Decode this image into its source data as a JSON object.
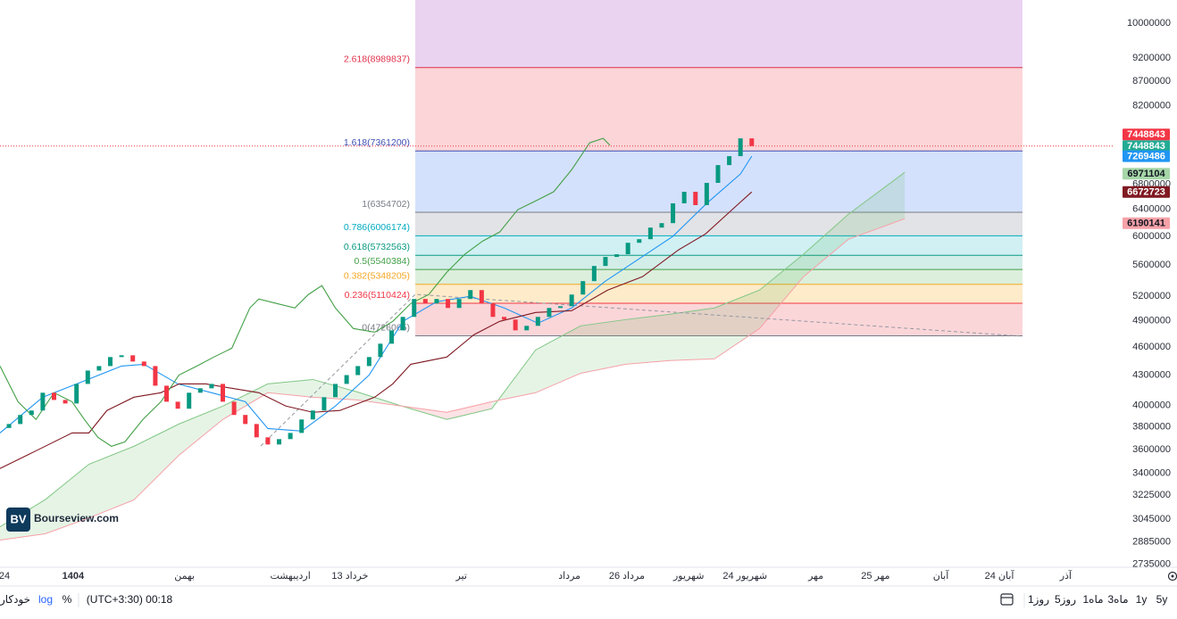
{
  "chart_data": {
    "type": "candlestick",
    "log_scale": true,
    "ylim": [
      2720000,
      10570000
    ],
    "yticks": [
      10000000,
      9200000,
      8700000,
      8200000,
      6800000,
      6400000,
      6000000,
      5600000,
      5200000,
      4900000,
      4600000,
      4300000,
      4000000,
      3800000,
      3600000,
      3400000,
      3225000,
      3045000,
      2885000,
      2735000
    ],
    "xlim": [
      -0.8,
      97.6
    ],
    "xticks": [
      {
        "value": -0.4,
        "label": "24"
      },
      {
        "value": 5.7,
        "label": "1404"
      },
      {
        "value": 15.6,
        "label": "بهمن"
      },
      {
        "value": 25,
        "label": "اردیبهشت"
      },
      {
        "value": 30.3,
        "label": "13 خرداد"
      },
      {
        "value": 40.2,
        "label": "تیر"
      },
      {
        "value": 49.8,
        "label": "مرداد"
      },
      {
        "value": 54.9,
        "label": "26 مرداد"
      },
      {
        "value": 60.4,
        "label": "شهریور"
      },
      {
        "value": 65.4,
        "label": "24 شهریور"
      },
      {
        "value": 71.7,
        "label": "مهر"
      },
      {
        "value": 77,
        "label": "25 مهر"
      },
      {
        "value": 82.8,
        "label": "آبان"
      },
      {
        "value": 88,
        "label": "24 آبان"
      },
      {
        "value": 93.9,
        "label": "آذر"
      }
    ],
    "candles": {
      "up_color": "#089981",
      "down_color": "#f23645",
      "open": [
        3790000,
        3826000,
        3910000,
        3952000,
        4124000,
        4053000,
        4019000,
        4212000,
        4349000,
        4396000,
        4492000,
        4511000,
        4444000,
        4396000,
        4194000,
        4036000,
        3969000,
        4124000,
        4168000,
        4212000,
        4036000,
        3910000,
        3826000,
        3706000,
        3643000,
        3690000,
        3745000,
        3868000,
        3952000,
        4080000,
        4212000,
        4302000,
        4396000,
        4492000,
        4638000,
        4789000,
        4946000,
        5163000,
        5107000,
        5163000,
        5053000,
        5163000,
        5274000,
        5107000,
        4946000,
        4914000,
        4789000,
        4841000,
        4946000,
        5053000,
        5074000,
        5218000,
        5389000,
        5588000,
        5710000,
        5747000,
        5907000,
        5958000,
        6126000,
        6192000,
        6493000,
        6675000,
        6465000,
        6819000,
        7116000,
        7270000,
        7587000
      ],
      "close": [
        3826000,
        3910000,
        3952000,
        4124000,
        4053000,
        4019000,
        4212000,
        4349000,
        4396000,
        4492000,
        4511000,
        4444000,
        4396000,
        4194000,
        4036000,
        3969000,
        4124000,
        4168000,
        4212000,
        4036000,
        3910000,
        3826000,
        3706000,
        3643000,
        3690000,
        3745000,
        3868000,
        3952000,
        4080000,
        4212000,
        4302000,
        4396000,
        4492000,
        4638000,
        4789000,
        4946000,
        5163000,
        5107000,
        5163000,
        5053000,
        5163000,
        5274000,
        5107000,
        4946000,
        4914000,
        4789000,
        4841000,
        4946000,
        5053000,
        5074000,
        5218000,
        5389000,
        5588000,
        5710000,
        5747000,
        5907000,
        5958000,
        6126000,
        6192000,
        6493000,
        6675000,
        6465000,
        6819000,
        7116000,
        7270000,
        7587000,
        7448843
      ]
    },
    "lines": [
      {
        "color": "#2196f3",
        "x": [
          -0.8,
          3,
          7,
          10,
          12,
          15,
          18,
          21,
          23,
          26,
          29,
          32,
          35,
          38,
          41,
          44,
          47,
          50,
          53,
          56,
          59,
          62,
          65,
          66
        ],
        "values": [
          3745000,
          4080000,
          4257000,
          4396000,
          4415000,
          4212000,
          4124000,
          4036000,
          3785000,
          3762000,
          3994000,
          4302000,
          4893000,
          5129000,
          5196000,
          5053000,
          4872000,
          5053000,
          5389000,
          5686000,
          6000000,
          6493000,
          6966000,
          7269486
        ]
      },
      {
        "color": "#801922",
        "x": [
          -0.8,
          2.4,
          5.6,
          7.1,
          8.7,
          11.1,
          13.5,
          15.1,
          17.5,
          19.8,
          22.2,
          24.6,
          27,
          29.4,
          32.5,
          34.1,
          35.7,
          38.9,
          41.3,
          43.6,
          46.8,
          50,
          53.2,
          56.3,
          59.5,
          61.9,
          64.7,
          66
        ],
        "values": [
          3439000,
          3588000,
          3745000,
          3745000,
          3952000,
          4080000,
          4124000,
          4212000,
          4212000,
          4168000,
          4124000,
          3994000,
          3935000,
          3952000,
          4080000,
          4212000,
          4415000,
          4492000,
          4738000,
          4893000,
          4999000,
          5020000,
          5274000,
          5447000,
          5808000,
          6035000,
          6465000,
          6672723
        ]
      },
      {
        "color": "#43a047",
        "x": [
          -0.8,
          0.8,
          2.4,
          4,
          5.6,
          6.7,
          7.9,
          9.1,
          10.3,
          11.9,
          13.5,
          15.1,
          16.7,
          18.2,
          19.8,
          21.4,
          22.2,
          23.8,
          25.4,
          26.6,
          27.8,
          29,
          30.6,
          32.5,
          34.1,
          35.7,
          37.3,
          38.9,
          40.5,
          42.1,
          43.6,
          45.2,
          46.8,
          48.4,
          50,
          51.6,
          52.8,
          53.4
        ],
        "values": [
          4396000,
          4036000,
          3868000,
          4124000,
          4036000,
          3868000,
          3706000,
          3627000,
          3666000,
          3868000,
          4036000,
          4302000,
          4396000,
          4492000,
          4588000,
          5053000,
          5163000,
          5107000,
          5053000,
          5218000,
          5331000,
          5053000,
          4810000,
          4768000,
          4893000,
          5107000,
          5218000,
          5504000,
          5747000,
          5932000,
          6061000,
          6394000,
          6531000,
          6675000,
          7038000,
          7507000,
          7587000,
          7462000
        ]
      }
    ],
    "cloud": {
      "up_fill": "#4caf50",
      "down_fill": "#f23645",
      "line_a_color": "#81c784",
      "line_b_color": "#f7a1a8",
      "x": [
        -0.8,
        3.2,
        7.1,
        11.1,
        15.1,
        19,
        23,
        27,
        30.9,
        34.9,
        38.9,
        42.9,
        46.8,
        50.8,
        54.8,
        58.7,
        62.7,
        66.7,
        70.6,
        74.6,
        79.6
      ],
      "span_a": [
        2991000,
        3190000,
        3474000,
        3627000,
        3826000,
        3994000,
        4212000,
        4257000,
        4133000,
        3994000,
        3868000,
        3969000,
        4569000,
        4841000,
        4914000,
        4977000,
        5053000,
        5274000,
        5747000,
        6326000,
        6994000
      ],
      "span_b": [
        2897000,
        2941000,
        3055000,
        3190000,
        3550000,
        3868000,
        4124000,
        4080000,
        4053000,
        3994000,
        3935000,
        4036000,
        4124000,
        4321000,
        4415000,
        4454000,
        4473000,
        4810000,
        5446000,
        5958000,
        6258000
      ]
    },
    "fib_levels": [
      {
        "value": 8989837,
        "label": "2.618(8989837)",
        "color": "#e0314b",
        "fill": "#ead3f1"
      },
      {
        "value": 7361200,
        "label": "1.618(7361200)",
        "color": "#3f51b5",
        "fill": "#fbd5d8"
      },
      {
        "value": 6354702,
        "label": "1(6354702)",
        "color": "#787b86",
        "fill": "#d4e1fc"
      },
      {
        "value": 6006174,
        "label": "0.786(6006174)",
        "color": "#00acc1",
        "fill": "#e2e3e6"
      },
      {
        "value": 5732563,
        "label": "0.618(5732563)",
        "color": "#089981",
        "fill": "#d0f0f3"
      },
      {
        "value": 5540384,
        "label": "0.5(5540384)",
        "color": "#43a047",
        "fill": "#d3eee9"
      },
      {
        "value": 5348205,
        "label": "0.382(5348205)",
        "color": "#f5a623",
        "fill": "#dcefdc"
      },
      {
        "value": 5110424,
        "label": "0.236(5110424)",
        "color": "#f23645",
        "fill": "#fdebca"
      },
      {
        "value": 4726065,
        "label": "0(4726065)",
        "color": "#787b86",
        "fill": "#fbd6d9"
      }
    ],
    "last_price": {
      "value": 7448843,
      "color": "#f23645"
    },
    "price_labels": [
      {
        "value": 7448843,
        "color": "#22ab94"
      },
      {
        "value": 7448843,
        "color": "#f23645"
      },
      {
        "value": 7269486,
        "color": "#2196f3"
      },
      {
        "value": 6971104,
        "color": "#a5d6a7",
        "text_color": "#131722"
      },
      {
        "value": 6672723,
        "color": "#801922"
      },
      {
        "value": 6190141,
        "color": "#f7a1a8",
        "text_color": "#131722"
      }
    ]
  },
  "watermark": {
    "logo": "BV",
    "text": "Bourseview.com"
  },
  "toolbar": {
    "ranges": [
      "5y",
      "1y",
      "3ماه",
      "1ماه",
      "5روز",
      "1روز"
    ],
    "time": "(UTC+3:30) 00:18",
    "percent": "%",
    "log": "log",
    "auto": "خودکار"
  }
}
